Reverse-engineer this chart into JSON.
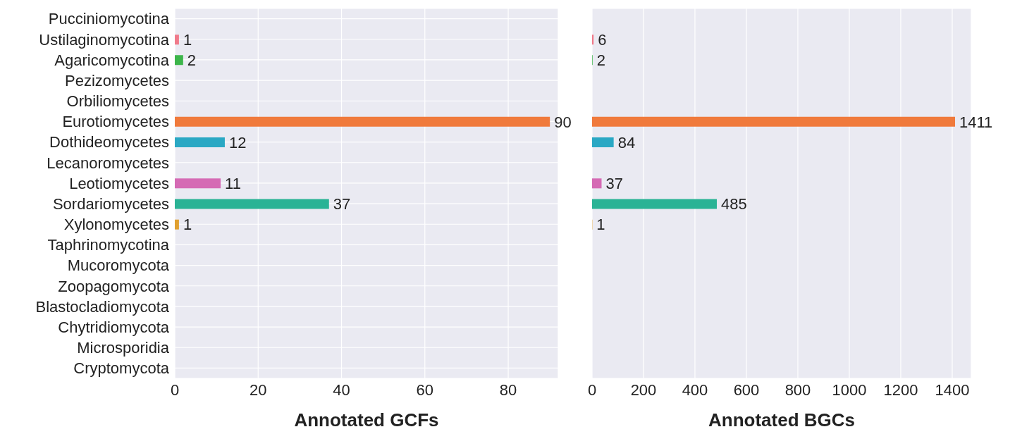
{
  "chart_data": [
    {
      "type": "bar",
      "orientation": "horizontal",
      "xlabel": "Annotated GCFs",
      "categories": [
        "Pucciniomycotina",
        "Ustilaginomycotina",
        "Agaricomycotina",
        "Pezizomycetes",
        "Orbiliomycetes",
        "Eurotiomycetes",
        "Dothideomycetes",
        "Lecanoromycetes",
        "Leotiomycetes",
        "Sordariomycetes",
        "Xylonomycetes",
        "Taphrinomycotina",
        "Mucoromycota",
        "Zoopagomycota",
        "Blastocladiomycota",
        "Chytridiomycota",
        "Microsporidia",
        "Cryptomycota"
      ],
      "values": [
        null,
        1,
        2,
        null,
        null,
        90,
        12,
        null,
        11,
        37,
        1,
        null,
        null,
        null,
        null,
        null,
        null,
        null
      ],
      "colors": [
        null,
        "#f07a8a",
        "#3cb54a",
        null,
        null,
        "#f07a3c",
        "#2aa8c4",
        null,
        "#d56ab4",
        "#2ab395",
        "#e0a030",
        null,
        null,
        null,
        null,
        null,
        null,
        null
      ],
      "xlim": [
        0,
        92
      ],
      "xticks": [
        0,
        20,
        40,
        60,
        80
      ],
      "grid": true,
      "data_labels": true
    },
    {
      "type": "bar",
      "orientation": "horizontal",
      "xlabel": "Annotated BGCs",
      "values": [
        null,
        6,
        2,
        null,
        null,
        1411,
        84,
        null,
        37,
        485,
        1,
        null,
        null,
        null,
        null,
        null,
        null,
        null
      ],
      "colors": [
        null,
        "#f07a8a",
        "#3cb54a",
        null,
        null,
        "#f07a3c",
        "#2aa8c4",
        null,
        "#d56ab4",
        "#2ab395",
        "#e0a030",
        null,
        null,
        null,
        null,
        null,
        null,
        null
      ],
      "xlim": [
        0,
        1474
      ],
      "xticks": [
        0,
        200,
        400,
        600,
        800,
        1000,
        1200,
        1400
      ],
      "grid": true,
      "data_labels": true,
      "tick_labels": "x"
    }
  ]
}
